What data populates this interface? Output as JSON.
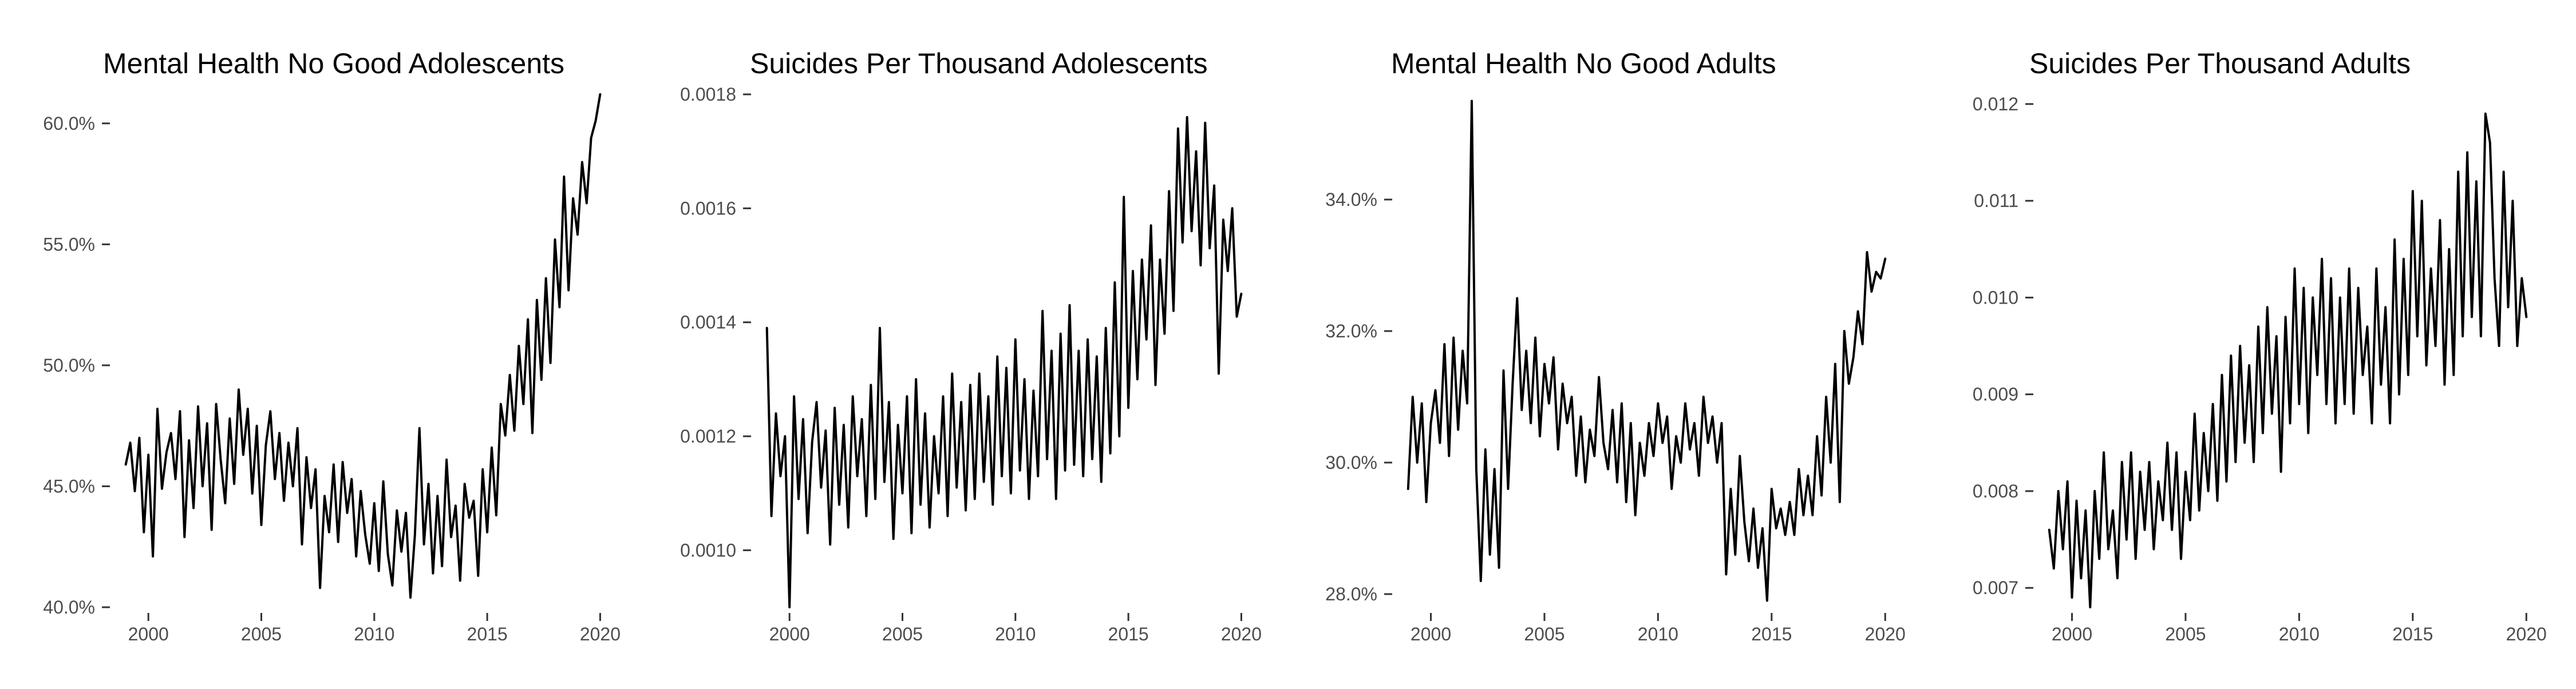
{
  "chart_data": [
    {
      "type": "line",
      "title": "Mental Health No Good Adolescents",
      "xlabel": "",
      "ylabel": "",
      "xlim": [
        1998.5,
        2020.8
      ],
      "ylim": [
        40.0,
        61.2
      ],
      "y_format": "percent1",
      "x_ticks": [
        2000,
        2005,
        2010,
        2015,
        2020
      ],
      "y_ticks": [
        40.0,
        45.0,
        50.0,
        55.0,
        60.0
      ],
      "grid": false,
      "legend": "none",
      "color": "#000000",
      "series": [
        {
          "x": [
            1999.0,
            1999.2,
            1999.4,
            1999.6,
            1999.8,
            2000.0,
            2000.2,
            2000.4,
            2000.6,
            2000.8,
            2001.0,
            2001.2,
            2001.4,
            2001.6,
            2001.8,
            2002.0,
            2002.2,
            2002.4,
            2002.6,
            2002.8,
            2003.0,
            2003.2,
            2003.4,
            2003.6,
            2003.8,
            2004.0,
            2004.2,
            2004.4,
            2004.6,
            2004.8,
            2005.0,
            2005.2,
            2005.4,
            2005.6,
            2005.8,
            2006.0,
            2006.2,
            2006.4,
            2006.6,
            2006.8,
            2007.0,
            2007.2,
            2007.4,
            2007.6,
            2007.8,
            2008.0,
            2008.2,
            2008.4,
            2008.6,
            2008.8,
            2009.0,
            2009.2,
            2009.4,
            2009.6,
            2009.8,
            2010.0,
            2010.2,
            2010.4,
            2010.6,
            2010.8,
            2011.0,
            2011.2,
            2011.4,
            2011.6,
            2011.8,
            2012.0,
            2012.2,
            2012.4,
            2012.6,
            2012.8,
            2013.0,
            2013.2,
            2013.4,
            2013.6,
            2013.8,
            2014.0,
            2014.2,
            2014.4,
            2014.6,
            2014.8,
            2015.0,
            2015.2,
            2015.4,
            2015.6,
            2015.8,
            2016.0,
            2016.2,
            2016.4,
            2016.6,
            2016.8,
            2017.0,
            2017.2,
            2017.4,
            2017.6,
            2017.8,
            2018.0,
            2018.2,
            2018.4,
            2018.6,
            2018.8,
            2019.0,
            2019.2,
            2019.4,
            2019.6,
            2019.8,
            2020.0
          ],
          "values": [
            45.9,
            46.8,
            44.8,
            47.0,
            43.1,
            46.3,
            42.1,
            48.2,
            44.9,
            46.4,
            47.2,
            45.3,
            48.1,
            42.9,
            46.9,
            44.1,
            48.3,
            45.0,
            47.6,
            43.2,
            48.4,
            46.1,
            44.3,
            47.8,
            45.1,
            49.0,
            46.3,
            48.2,
            44.7,
            47.5,
            43.4,
            46.7,
            48.1,
            45.3,
            47.2,
            44.4,
            46.8,
            45.0,
            47.4,
            42.6,
            46.2,
            44.1,
            45.7,
            40.8,
            44.6,
            43.1,
            45.9,
            42.7,
            46.0,
            43.9,
            45.3,
            42.1,
            44.8,
            43.0,
            41.8,
            44.3,
            41.5,
            45.2,
            42.2,
            40.9,
            44.0,
            42.3,
            43.9,
            40.4,
            43.0,
            47.4,
            42.6,
            45.1,
            41.4,
            44.6,
            41.7,
            46.1,
            42.9,
            44.2,
            41.1,
            45.1,
            43.7,
            44.4,
            41.3,
            45.7,
            43.1,
            46.6,
            43.8,
            48.4,
            47.1,
            49.6,
            47.3,
            50.8,
            48.4,
            51.9,
            47.2,
            52.7,
            49.4,
            53.6,
            50.1,
            55.2,
            52.4,
            57.8,
            53.1,
            56.9,
            55.4,
            58.4,
            56.7,
            59.4,
            60.1,
            61.2
          ]
        }
      ]
    },
    {
      "type": "line",
      "title": "Suicides Per Thousand Adolescents",
      "xlabel": "",
      "ylabel": "",
      "xlim": [
        1998.5,
        2020.8
      ],
      "ylim": [
        0.0009,
        0.0018
      ],
      "y_format": "fixed4",
      "x_ticks": [
        2000,
        2005,
        2010,
        2015,
        2020
      ],
      "y_ticks": [
        0.001,
        0.0012,
        0.0014,
        0.0016,
        0.0018
      ],
      "grid": false,
      "legend": "none",
      "color": "#000000",
      "series": [
        {
          "x": [
            1999.0,
            1999.2,
            1999.4,
            1999.6,
            1999.8,
            2000.0,
            2000.2,
            2000.4,
            2000.6,
            2000.8,
            2001.0,
            2001.2,
            2001.4,
            2001.6,
            2001.8,
            2002.0,
            2002.2,
            2002.4,
            2002.6,
            2002.8,
            2003.0,
            2003.2,
            2003.4,
            2003.6,
            2003.8,
            2004.0,
            2004.2,
            2004.4,
            2004.6,
            2004.8,
            2005.0,
            2005.2,
            2005.4,
            2005.6,
            2005.8,
            2006.0,
            2006.2,
            2006.4,
            2006.6,
            2006.8,
            2007.0,
            2007.2,
            2007.4,
            2007.6,
            2007.8,
            2008.0,
            2008.2,
            2008.4,
            2008.6,
            2008.8,
            2009.0,
            2009.2,
            2009.4,
            2009.6,
            2009.8,
            2010.0,
            2010.2,
            2010.4,
            2010.6,
            2010.8,
            2011.0,
            2011.2,
            2011.4,
            2011.6,
            2011.8,
            2012.0,
            2012.2,
            2012.4,
            2012.6,
            2012.8,
            2013.0,
            2013.2,
            2013.4,
            2013.6,
            2013.8,
            2014.0,
            2014.2,
            2014.4,
            2014.6,
            2014.8,
            2015.0,
            2015.2,
            2015.4,
            2015.6,
            2015.8,
            2016.0,
            2016.2,
            2016.4,
            2016.6,
            2016.8,
            2017.0,
            2017.2,
            2017.4,
            2017.6,
            2017.8,
            2018.0,
            2018.2,
            2018.4,
            2018.6,
            2018.8,
            2019.0,
            2019.2,
            2019.4,
            2019.6,
            2019.8,
            2020.0
          ],
          "values": [
            0.00139,
            0.00106,
            0.00124,
            0.00113,
            0.0012,
            0.0009,
            0.00127,
            0.00109,
            0.00123,
            0.00103,
            0.00119,
            0.00126,
            0.00111,
            0.00121,
            0.00101,
            0.00125,
            0.00108,
            0.00122,
            0.00104,
            0.00127,
            0.00113,
            0.00123,
            0.00106,
            0.00129,
            0.00109,
            0.00139,
            0.00112,
            0.00126,
            0.00102,
            0.00122,
            0.0011,
            0.00127,
            0.00103,
            0.0013,
            0.00108,
            0.00124,
            0.00104,
            0.0012,
            0.0011,
            0.00127,
            0.00106,
            0.00131,
            0.00111,
            0.00126,
            0.00107,
            0.00129,
            0.00109,
            0.00131,
            0.00112,
            0.00127,
            0.00108,
            0.00134,
            0.00113,
            0.00132,
            0.0011,
            0.00137,
            0.00114,
            0.0013,
            0.00109,
            0.00128,
            0.00113,
            0.00142,
            0.00116,
            0.00135,
            0.00109,
            0.00138,
            0.00114,
            0.00143,
            0.00115,
            0.00135,
            0.00113,
            0.00137,
            0.00116,
            0.00134,
            0.00112,
            0.00139,
            0.00117,
            0.00147,
            0.0012,
            0.00162,
            0.00125,
            0.00149,
            0.0013,
            0.00151,
            0.00137,
            0.00157,
            0.00129,
            0.00151,
            0.00138,
            0.00163,
            0.00142,
            0.00174,
            0.00154,
            0.00176,
            0.00156,
            0.0017,
            0.0015,
            0.00175,
            0.00153,
            0.00164,
            0.00131,
            0.00158,
            0.00149,
            0.0016,
            0.00141,
            0.00145
          ]
        }
      ]
    },
    {
      "type": "line",
      "title": "Mental Health No Good Adults",
      "xlabel": "",
      "ylabel": "",
      "xlim": [
        1998.5,
        2020.8
      ],
      "ylim": [
        27.8,
        35.6
      ],
      "y_format": "percent1",
      "x_ticks": [
        2000,
        2005,
        2010,
        2015,
        2020
      ],
      "y_ticks": [
        28.0,
        30.0,
        32.0,
        34.0
      ],
      "grid": false,
      "legend": "none",
      "color": "#000000",
      "series": [
        {
          "x": [
            1999.0,
            1999.2,
            1999.4,
            1999.6,
            1999.8,
            2000.0,
            2000.2,
            2000.4,
            2000.6,
            2000.8,
            2001.0,
            2001.2,
            2001.4,
            2001.6,
            2001.8,
            2002.0,
            2002.2,
            2002.4,
            2002.6,
            2002.8,
            2003.0,
            2003.2,
            2003.4,
            2003.6,
            2003.8,
            2004.0,
            2004.2,
            2004.4,
            2004.6,
            2004.8,
            2005.0,
            2005.2,
            2005.4,
            2005.6,
            2005.8,
            2006.0,
            2006.2,
            2006.4,
            2006.6,
            2006.8,
            2007.0,
            2007.2,
            2007.4,
            2007.6,
            2007.8,
            2008.0,
            2008.2,
            2008.4,
            2008.6,
            2008.8,
            2009.0,
            2009.2,
            2009.4,
            2009.6,
            2009.8,
            2010.0,
            2010.2,
            2010.4,
            2010.6,
            2010.8,
            2011.0,
            2011.2,
            2011.4,
            2011.6,
            2011.8,
            2012.0,
            2012.2,
            2012.4,
            2012.6,
            2012.8,
            2013.0,
            2013.2,
            2013.4,
            2013.6,
            2013.8,
            2014.0,
            2014.2,
            2014.4,
            2014.6,
            2014.8,
            2015.0,
            2015.2,
            2015.4,
            2015.6,
            2015.8,
            2016.0,
            2016.2,
            2016.4,
            2016.6,
            2016.8,
            2017.0,
            2017.2,
            2017.4,
            2017.6,
            2017.8,
            2018.0,
            2018.2,
            2018.4,
            2018.6,
            2018.8,
            2019.0,
            2019.2,
            2019.4,
            2019.6,
            2019.8,
            2020.0
          ],
          "values": [
            29.6,
            31.0,
            30.0,
            30.9,
            29.4,
            30.6,
            31.1,
            30.3,
            31.8,
            30.1,
            31.9,
            30.5,
            31.7,
            30.9,
            35.5,
            29.9,
            28.2,
            30.2,
            28.6,
            29.9,
            28.4,
            31.4,
            29.6,
            31.2,
            32.5,
            30.8,
            31.7,
            30.6,
            31.9,
            30.4,
            31.5,
            30.9,
            31.6,
            30.2,
            31.2,
            30.6,
            31.0,
            29.8,
            30.7,
            29.7,
            30.5,
            30.1,
            31.3,
            30.3,
            29.9,
            30.8,
            29.7,
            30.9,
            29.4,
            30.6,
            29.2,
            30.3,
            29.8,
            30.6,
            30.1,
            30.9,
            30.3,
            30.7,
            29.6,
            30.4,
            30.0,
            30.9,
            30.2,
            30.6,
            29.8,
            31.0,
            30.3,
            30.7,
            30.0,
            30.6,
            28.3,
            29.6,
            28.6,
            30.1,
            29.1,
            28.5,
            29.3,
            28.4,
            29.0,
            27.9,
            29.6,
            29.0,
            29.3,
            28.9,
            29.4,
            28.9,
            29.9,
            29.2,
            29.8,
            29.2,
            30.4,
            29.5,
            31.0,
            30.0,
            31.5,
            29.4,
            32.0,
            31.2,
            31.6,
            32.3,
            31.8,
            33.2,
            32.6,
            32.9,
            32.8,
            33.1
          ]
        }
      ]
    },
    {
      "type": "line",
      "title": "Suicides Per Thousand Adults",
      "xlabel": "",
      "ylabel": "",
      "xlim": [
        1998.5,
        2020.8
      ],
      "ylim": [
        0.0068,
        0.0121
      ],
      "y_format": "fixed3",
      "x_ticks": [
        2000,
        2005,
        2010,
        2015,
        2020
      ],
      "y_ticks": [
        0.007,
        0.008,
        0.009,
        0.01,
        0.011,
        0.012
      ],
      "grid": false,
      "legend": "none",
      "color": "#000000",
      "series": [
        {
          "x": [
            1999.0,
            1999.2,
            1999.4,
            1999.6,
            1999.8,
            2000.0,
            2000.2,
            2000.4,
            2000.6,
            2000.8,
            2001.0,
            2001.2,
            2001.4,
            2001.6,
            2001.8,
            2002.0,
            2002.2,
            2002.4,
            2002.6,
            2002.8,
            2003.0,
            2003.2,
            2003.4,
            2003.6,
            2003.8,
            2004.0,
            2004.2,
            2004.4,
            2004.6,
            2004.8,
            2005.0,
            2005.2,
            2005.4,
            2005.6,
            2005.8,
            2006.0,
            2006.2,
            2006.4,
            2006.6,
            2006.8,
            2007.0,
            2007.2,
            2007.4,
            2007.6,
            2007.8,
            2008.0,
            2008.2,
            2008.4,
            2008.6,
            2008.8,
            2009.0,
            2009.2,
            2009.4,
            2009.6,
            2009.8,
            2010.0,
            2010.2,
            2010.4,
            2010.6,
            2010.8,
            2011.0,
            2011.2,
            2011.4,
            2011.6,
            2011.8,
            2012.0,
            2012.2,
            2012.4,
            2012.6,
            2012.8,
            2013.0,
            2013.2,
            2013.4,
            2013.6,
            2013.8,
            2014.0,
            2014.2,
            2014.4,
            2014.6,
            2014.8,
            2015.0,
            2015.2,
            2015.4,
            2015.6,
            2015.8,
            2016.0,
            2016.2,
            2016.4,
            2016.6,
            2016.8,
            2017.0,
            2017.2,
            2017.4,
            2017.6,
            2017.8,
            2018.0,
            2018.2,
            2018.4,
            2018.6,
            2018.8,
            2019.0,
            2019.2,
            2019.4,
            2019.6,
            2019.8,
            2020.0
          ],
          "values": [
            0.0076,
            0.0072,
            0.008,
            0.0074,
            0.0081,
            0.0069,
            0.0079,
            0.0071,
            0.0078,
            0.0068,
            0.008,
            0.0073,
            0.0084,
            0.0074,
            0.0078,
            0.0071,
            0.0083,
            0.0075,
            0.0084,
            0.0073,
            0.0082,
            0.0076,
            0.0083,
            0.0074,
            0.0081,
            0.0077,
            0.0085,
            0.0076,
            0.0084,
            0.0073,
            0.0082,
            0.0077,
            0.0088,
            0.0078,
            0.0086,
            0.008,
            0.0089,
            0.0079,
            0.0092,
            0.0081,
            0.0094,
            0.0083,
            0.0095,
            0.0085,
            0.0093,
            0.0083,
            0.0097,
            0.0086,
            0.0099,
            0.0088,
            0.0096,
            0.0082,
            0.0098,
            0.0087,
            0.0103,
            0.0089,
            0.0101,
            0.0086,
            0.01,
            0.0092,
            0.0104,
            0.0089,
            0.0102,
            0.0087,
            0.01,
            0.0089,
            0.0103,
            0.0088,
            0.0101,
            0.0092,
            0.0097,
            0.0087,
            0.0103,
            0.0091,
            0.0099,
            0.0087,
            0.0106,
            0.009,
            0.0104,
            0.0092,
            0.0111,
            0.0096,
            0.011,
            0.0093,
            0.0103,
            0.0095,
            0.0108,
            0.0091,
            0.0105,
            0.0092,
            0.0113,
            0.0096,
            0.0115,
            0.0098,
            0.0112,
            0.0096,
            0.0119,
            0.0116,
            0.0102,
            0.0095,
            0.0113,
            0.0099,
            0.011,
            0.0095,
            0.0102,
            0.0098
          ]
        }
      ]
    }
  ]
}
